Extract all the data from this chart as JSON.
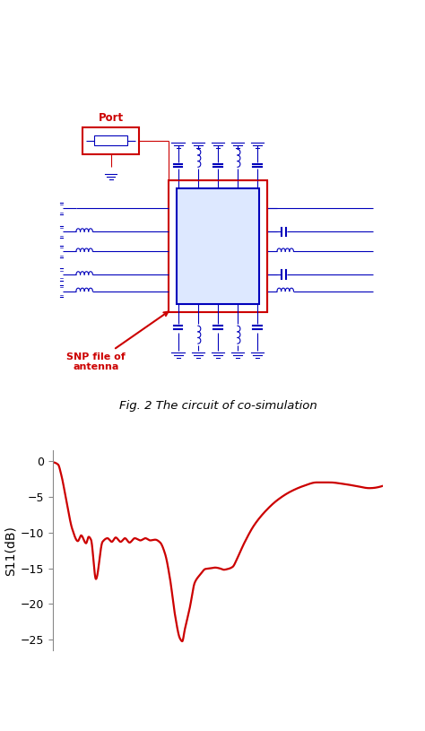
{
  "title_circuit": "Fig. 2 The circuit of co-simulation",
  "ylabel": "S11(dB)",
  "line_color": "#cc0000",
  "line_width": 1.6,
  "yticks": [
    0,
    -5,
    -10,
    -15,
    -20,
    -25
  ],
  "background_color": "#ffffff",
  "fig_width": 4.74,
  "fig_height": 8.15,
  "blue": "#0000bb",
  "red": "#cc0000",
  "purple": "#880088"
}
